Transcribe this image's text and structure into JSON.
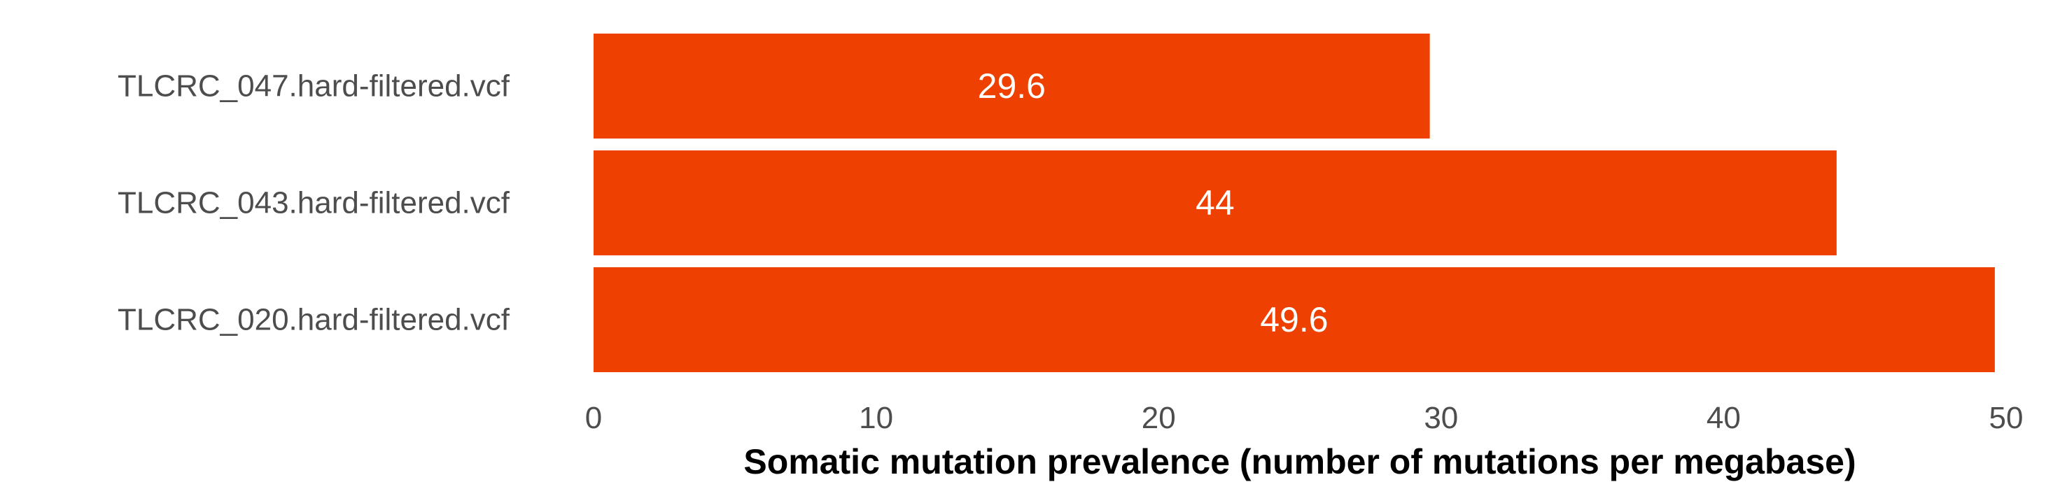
{
  "chart_data": {
    "type": "bar",
    "orientation": "horizontal",
    "categories": [
      "TLCRC_047.hard-filtered.vcf",
      "TLCRC_043.hard-filtered.vcf",
      "TLCRC_020.hard-filtered.vcf"
    ],
    "values": [
      29.6,
      44,
      49.6
    ],
    "data_labels": [
      "29.6",
      "44",
      "49.6"
    ],
    "bar_color": "#ee4000",
    "xlabel": "Somatic mutation prevalence (number of mutations per megabase)",
    "ylabel": "",
    "xlim": [
      0,
      50
    ],
    "x_ticks": [
      0,
      10,
      20,
      30,
      40,
      50
    ],
    "grid": false,
    "legend": "none"
  }
}
